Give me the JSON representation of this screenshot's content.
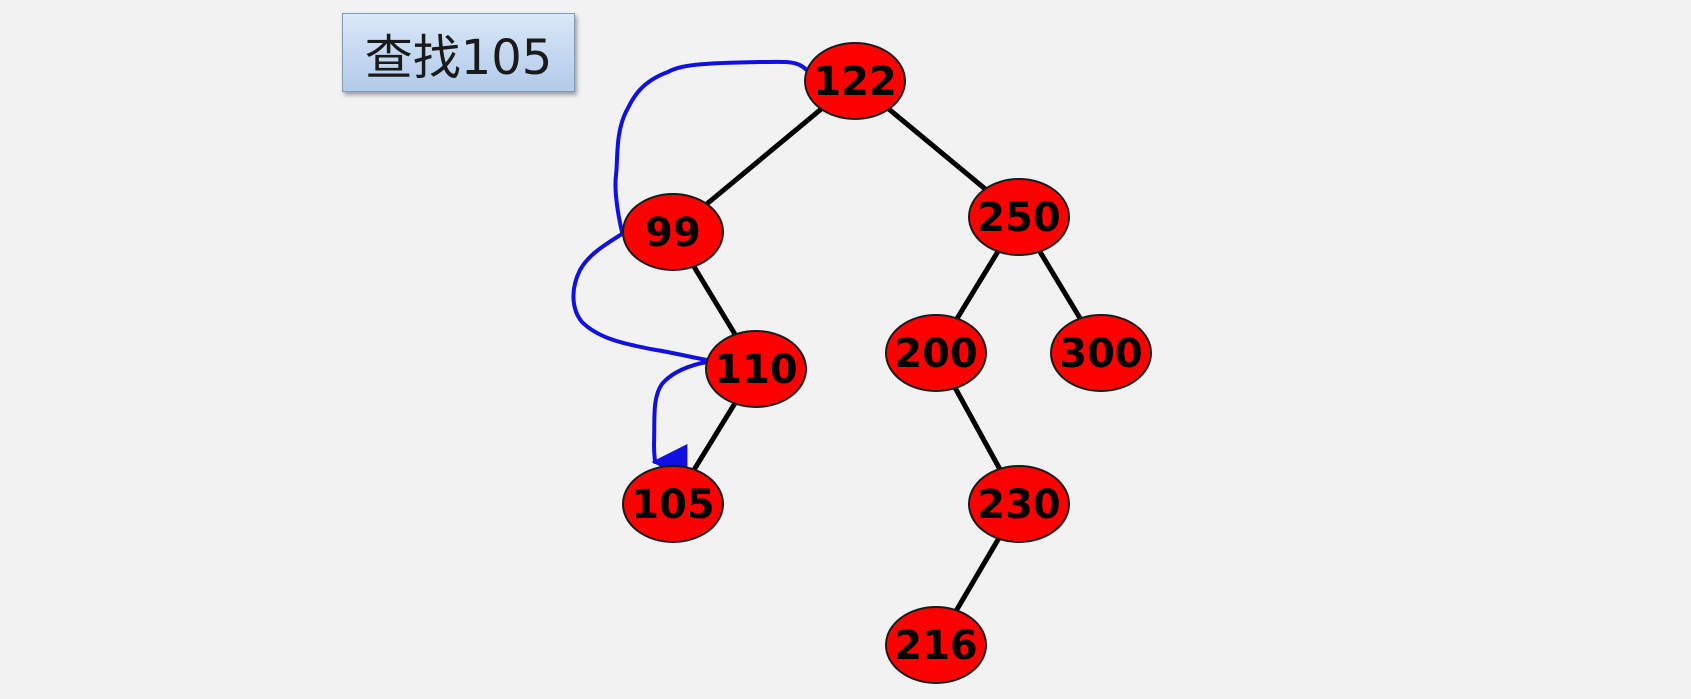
{
  "title": "查找105",
  "colors": {
    "background": "#f2f2f2",
    "node_fill": "#ff0000",
    "node_stroke": "#1a1a1a",
    "edge": "#000000",
    "search_path": "#1010e0"
  },
  "tree": {
    "nodes": [
      {
        "id": "n122",
        "label": "122"
      },
      {
        "id": "n99",
        "label": "99"
      },
      {
        "id": "n250",
        "label": "250"
      },
      {
        "id": "n110",
        "label": "110"
      },
      {
        "id": "n200",
        "label": "200"
      },
      {
        "id": "n300",
        "label": "300"
      },
      {
        "id": "n105",
        "label": "105"
      },
      {
        "id": "n230",
        "label": "230"
      },
      {
        "id": "n216",
        "label": "216"
      }
    ],
    "edges": [
      [
        "n122",
        "n99"
      ],
      [
        "n122",
        "n250"
      ],
      [
        "n99",
        "n110"
      ],
      [
        "n250",
        "n200"
      ],
      [
        "n250",
        "n300"
      ],
      [
        "n110",
        "n105"
      ],
      [
        "n200",
        "n230"
      ],
      [
        "n230",
        "n216"
      ]
    ],
    "search_path": [
      "n122",
      "n99",
      "n110",
      "n105"
    ]
  }
}
